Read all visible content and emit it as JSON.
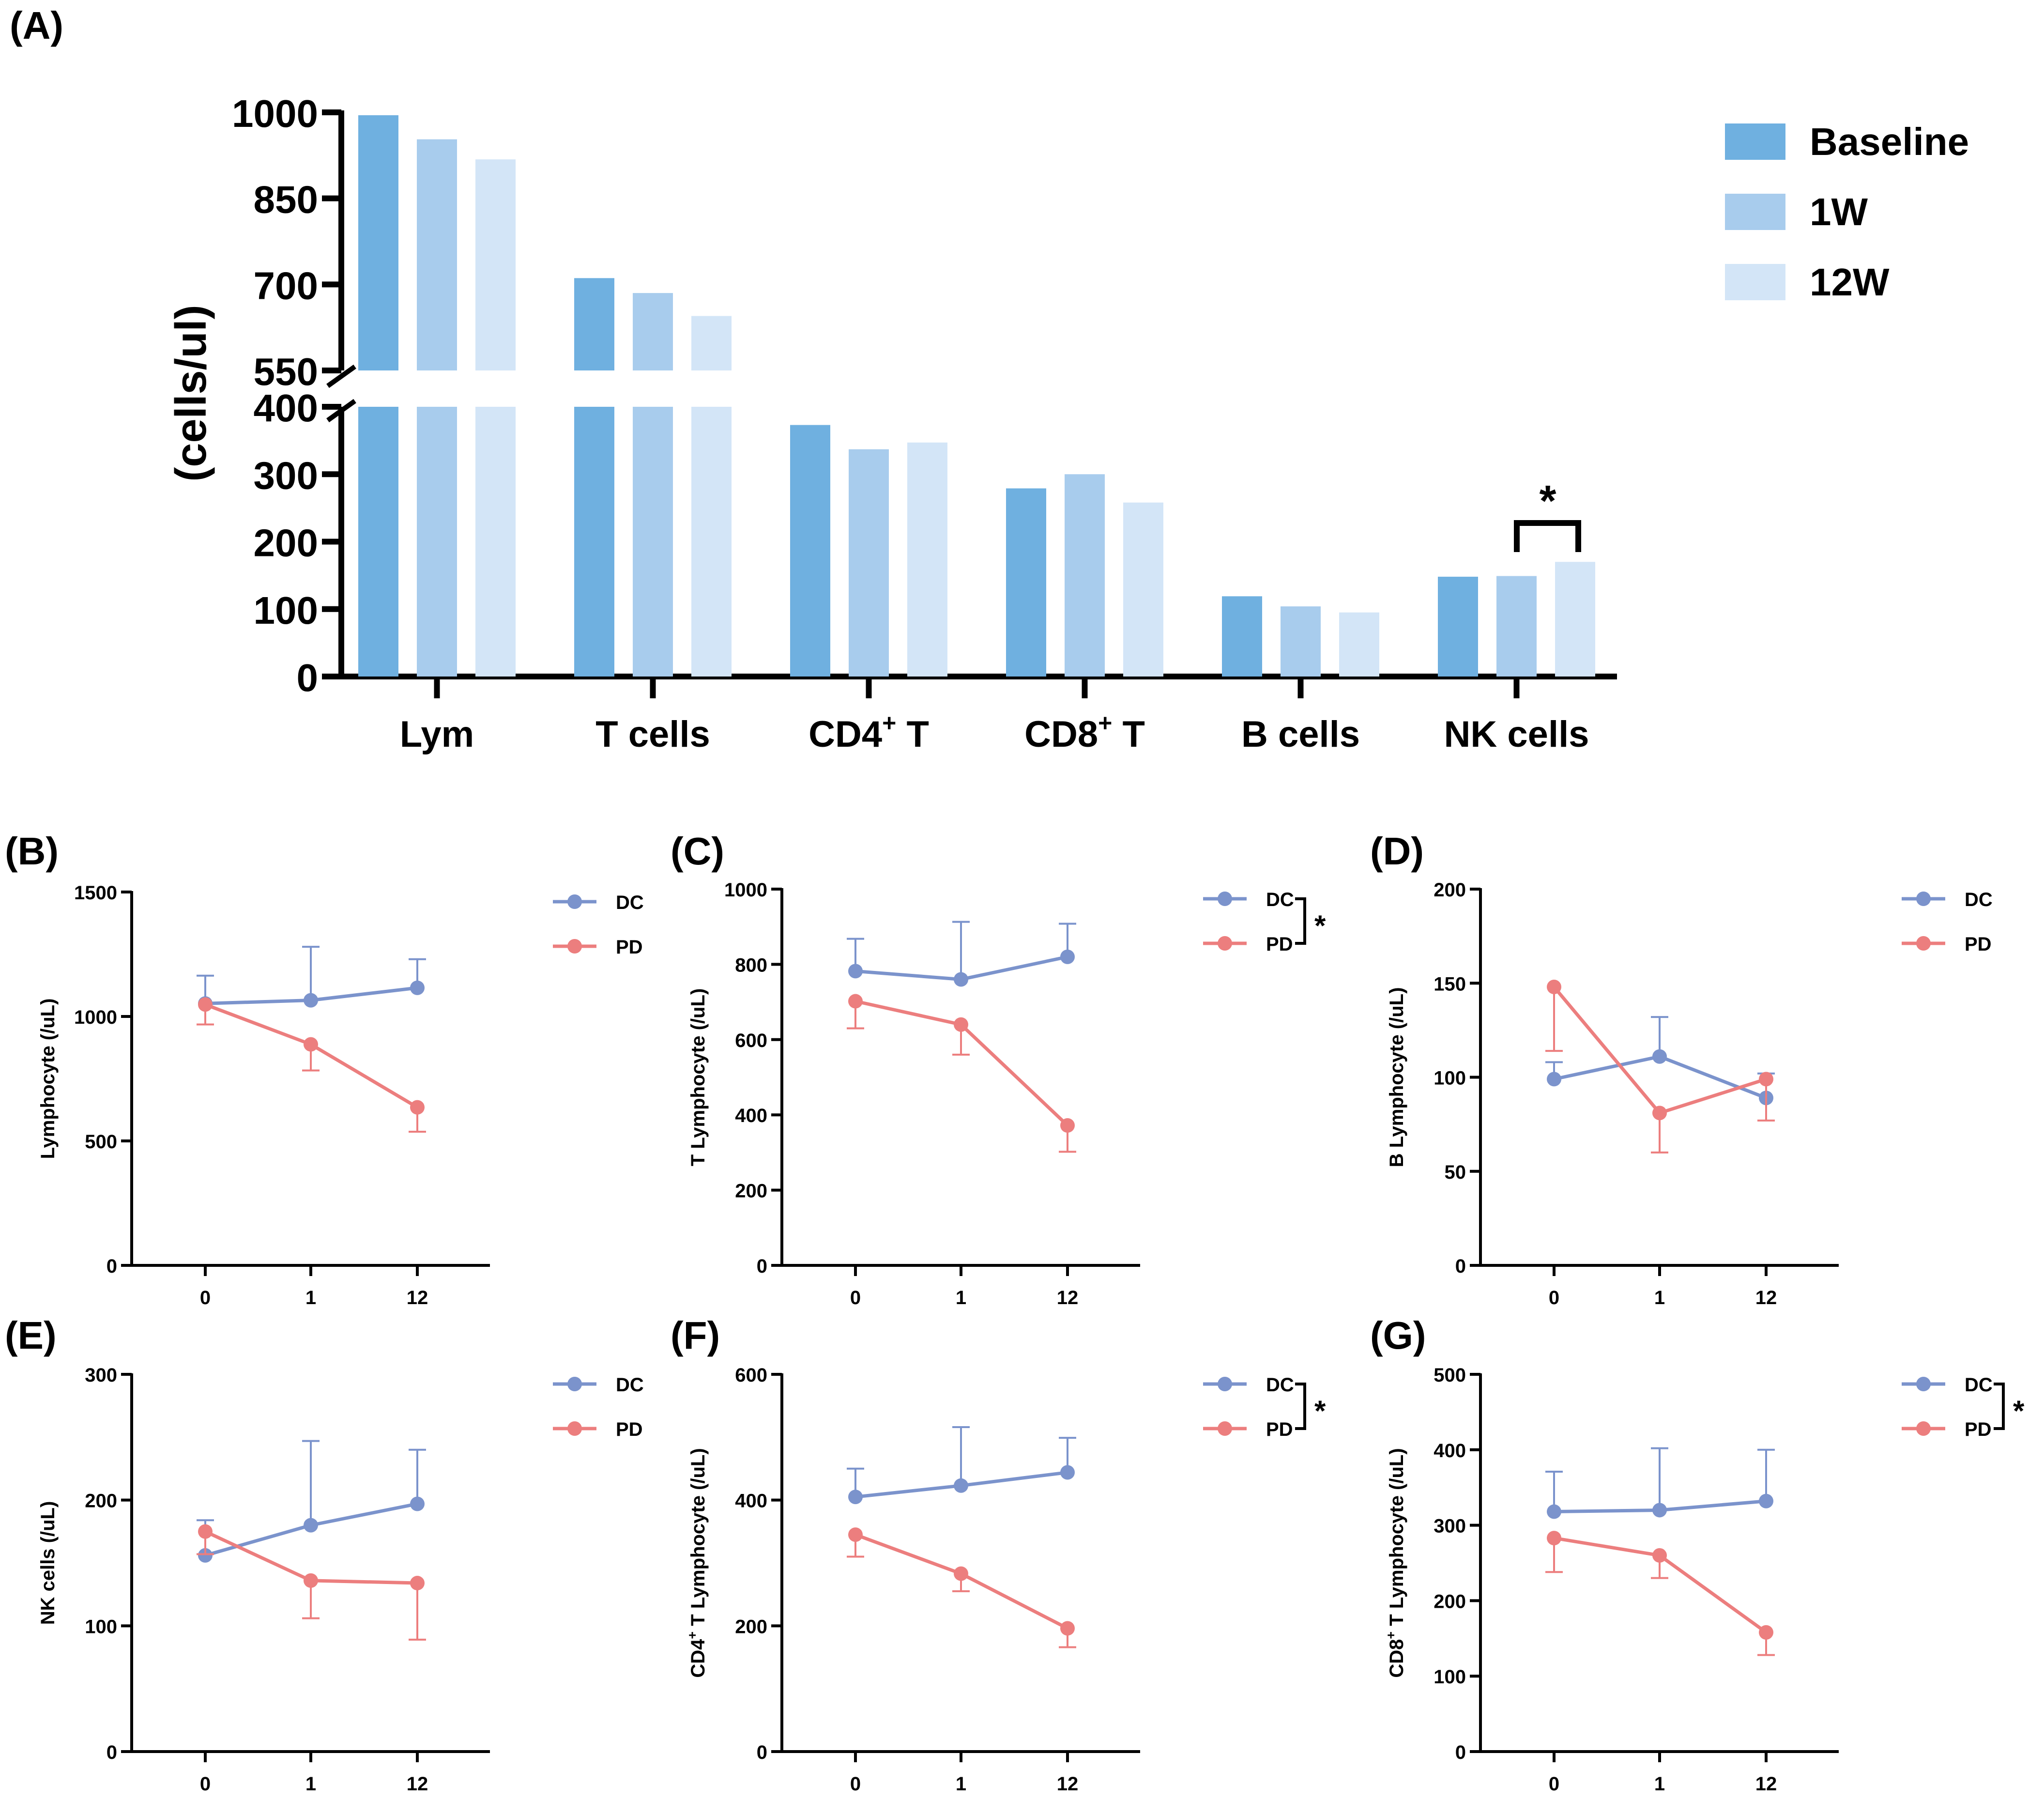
{
  "chart_data": [
    {
      "panel": "(A)",
      "type": "bar",
      "ylabel": "(cells/ul)",
      "ylim": [
        0,
        1000
      ],
      "axis_break": [
        400,
        550
      ],
      "yticks": [
        0,
        100,
        200,
        300,
        400,
        550,
        700,
        850,
        1000
      ],
      "ytick_labels": [
        "0",
        "100",
        "200",
        "300",
        "400",
        "550",
        "700",
        "850",
        "1000"
      ],
      "categories": [
        "Lym",
        "T cells",
        "CD4",
        "CD8",
        "B cells",
        "NK cells"
      ],
      "category_labels": [
        {
          "main": "Lym",
          "sup": "",
          "suffix": ""
        },
        {
          "main": "T cells",
          "sup": "",
          "suffix": ""
        },
        {
          "main": "CD4",
          "sup": "+",
          "suffix": " T"
        },
        {
          "main": "CD8",
          "sup": "+",
          "suffix": " T"
        },
        {
          "main": "B cells",
          "sup": "",
          "suffix": ""
        },
        {
          "main": "NK cells",
          "sup": "",
          "suffix": ""
        }
      ],
      "series": [
        {
          "name": "Baseline",
          "color": "#6fb0e0",
          "values": [
            995,
            711,
            373,
            279,
            119,
            148
          ]
        },
        {
          "name": "1W",
          "color": "#a8cced",
          "values": [
            953,
            685,
            337,
            300,
            104,
            149
          ]
        },
        {
          "name": "12W",
          "color": "#d3e5f7",
          "values": [
            918,
            645,
            347,
            258,
            95,
            170
          ]
        }
      ],
      "annotation": {
        "text": "*",
        "category": "NK cells",
        "between": [
          "1W",
          "12W"
        ]
      }
    },
    {
      "panel": "(B)",
      "type": "line",
      "ylabel": "Lymphocyte (/uL)",
      "ylim": [
        0,
        1500
      ],
      "yticks": [
        0,
        500,
        1000,
        1500
      ],
      "ytick_labels": [
        "0",
        "500",
        "1000",
        "1500"
      ],
      "x": [
        "0",
        "1",
        "12"
      ],
      "series": [
        {
          "name": "DC",
          "color": "#7b93cc",
          "values": [
            1052,
            1065,
            1115
          ],
          "errors": [
            112,
            215,
            115
          ],
          "error_dir": "up"
        },
        {
          "name": "PD",
          "color": "#ec7e7e",
          "values": [
            1048,
            888,
            635
          ],
          "errors": [
            80,
            105,
            98
          ],
          "error_dir": "down"
        }
      ],
      "significance": ""
    },
    {
      "panel": "(C)",
      "type": "line",
      "ylabel": "T Lymphocyte (/uL)",
      "ylim": [
        0,
        1000
      ],
      "yticks": [
        0,
        200,
        400,
        600,
        800,
        1000
      ],
      "ytick_labels": [
        "0",
        "200",
        "400",
        "600",
        "800",
        "1000"
      ],
      "x": [
        "0",
        "1",
        "12"
      ],
      "series": [
        {
          "name": "DC",
          "color": "#7b93cc",
          "values": [
            782,
            760,
            820
          ],
          "errors": [
            86,
            153,
            88
          ],
          "error_dir": "up"
        },
        {
          "name": "PD",
          "color": "#ec7e7e",
          "values": [
            702,
            640,
            372
          ],
          "errors": [
            72,
            80,
            70
          ],
          "error_dir": "down"
        }
      ],
      "significance": "*"
    },
    {
      "panel": "(D)",
      "type": "line",
      "ylabel": "B Lymphocyte (/uL)",
      "ylim": [
        0,
        200
      ],
      "yticks": [
        0,
        50,
        100,
        150,
        200
      ],
      "ytick_labels": [
        "0",
        "50",
        "100",
        "150",
        "200"
      ],
      "x": [
        "0",
        "1",
        "12"
      ],
      "series": [
        {
          "name": "DC",
          "color": "#7b93cc",
          "values": [
            99,
            111,
            89
          ],
          "errors": [
            9,
            21,
            13
          ],
          "error_dir": "up"
        },
        {
          "name": "PD",
          "color": "#ec7e7e",
          "values": [
            148,
            81,
            99
          ],
          "errors": [
            34,
            21,
            22
          ],
          "error_dir": "down"
        }
      ],
      "significance": ""
    },
    {
      "panel": "(E)",
      "type": "line",
      "ylabel": "NK cells (/uL)",
      "ylim": [
        0,
        300
      ],
      "yticks": [
        0,
        100,
        200,
        300
      ],
      "ytick_labels": [
        "0",
        "100",
        "200",
        "300"
      ],
      "x": [
        "0",
        "1",
        "12"
      ],
      "series": [
        {
          "name": "DC",
          "color": "#7b93cc",
          "values": [
            156,
            180,
            197
          ],
          "errors": [
            28,
            67,
            43
          ],
          "error_dir": "up"
        },
        {
          "name": "PD",
          "color": "#ec7e7e",
          "values": [
            175,
            136,
            134
          ],
          "errors": [
            18,
            30,
            45
          ],
          "error_dir": "down"
        }
      ],
      "significance": ""
    },
    {
      "panel": "(F)",
      "type": "line",
      "ylabel": "CD4+ T Lymphocyte (/uL)",
      "ylabel_parts": {
        "main": "CD4",
        "sup": "+",
        "suffix": " T Lymphocyte (/uL)"
      },
      "ylim": [
        0,
        600
      ],
      "yticks": [
        0,
        200,
        400,
        600
      ],
      "ytick_labels": [
        "0",
        "200",
        "400",
        "600"
      ],
      "x": [
        "0",
        "1",
        "12"
      ],
      "series": [
        {
          "name": "DC",
          "color": "#7b93cc",
          "values": [
            405,
            423,
            444
          ],
          "errors": [
            45,
            93,
            55
          ],
          "error_dir": "up"
        },
        {
          "name": "PD",
          "color": "#ec7e7e",
          "values": [
            345,
            283,
            196
          ],
          "errors": [
            35,
            28,
            30
          ],
          "error_dir": "down"
        }
      ],
      "significance": "*"
    },
    {
      "panel": "(G)",
      "type": "line",
      "ylabel": "CD8+ T Lymphocyte (/uL)",
      "ylabel_parts": {
        "main": "CD8",
        "sup": "+",
        "suffix": " T Lymphocyte (/uL)"
      },
      "ylim": [
        0,
        500
      ],
      "yticks": [
        0,
        100,
        200,
        300,
        400,
        500
      ],
      "ytick_labels": [
        "0",
        "100",
        "200",
        "300",
        "400",
        "500"
      ],
      "x": [
        "0",
        "1",
        "12"
      ],
      "series": [
        {
          "name": "DC",
          "color": "#7b93cc",
          "values": [
            318,
            320,
            332
          ],
          "errors": [
            53,
            82,
            68
          ],
          "error_dir": "up"
        },
        {
          "name": "PD",
          "color": "#ec7e7e",
          "values": [
            283,
            260,
            158
          ],
          "errors": [
            45,
            30,
            30
          ],
          "error_dir": "down"
        }
      ],
      "significance": "*"
    }
  ]
}
